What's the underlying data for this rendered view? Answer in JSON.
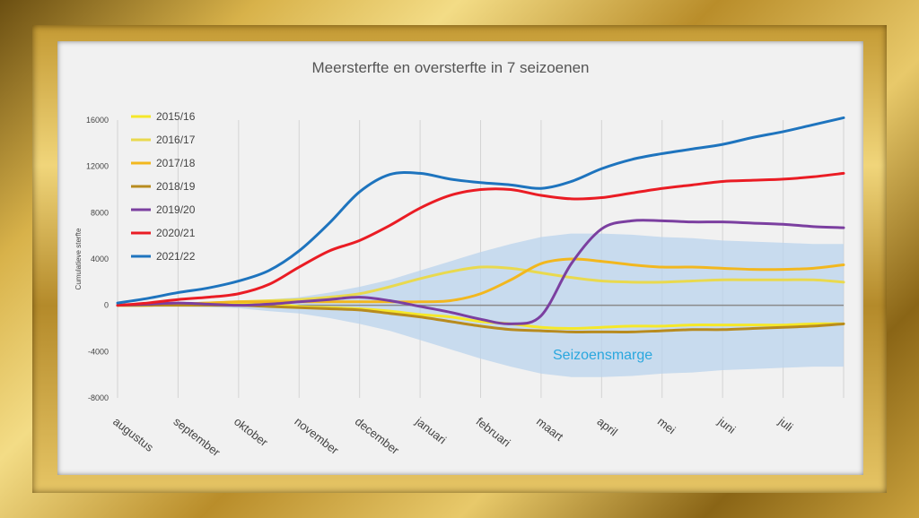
{
  "chart_data": {
    "type": "line",
    "title": "Meersterfte en oversterfte in 7 seizoenen",
    "xlabel": "",
    "ylabel": "Cumulatieve sterfte",
    "ylim": [
      -8000,
      16000
    ],
    "yticks": [
      16000,
      12000,
      8000,
      4000,
      0,
      -4000,
      -8000
    ],
    "categories": [
      "augustus",
      "september",
      "oktober",
      "november",
      "december",
      "januari",
      "februari",
      "maart",
      "april",
      "mei",
      "juni",
      "juli"
    ],
    "x": [
      0,
      0.5,
      1,
      1.5,
      2,
      2.5,
      3,
      3.5,
      4,
      4.5,
      5,
      5.5,
      6,
      6.5,
      7,
      7.5,
      8,
      8.5,
      9,
      9.5,
      10,
      10.5,
      11,
      11.5,
      12
    ],
    "legend_position": "top-left",
    "grid": "vertical",
    "annotation": "Seizoensmarge",
    "band": {
      "lower": [
        -100,
        -100,
        -100,
        -150,
        -250,
        -500,
        -700,
        -1100,
        -1600,
        -2200,
        -3000,
        -3800,
        -4600,
        -5300,
        -5900,
        -6200,
        -6200,
        -6100,
        -5900,
        -5800,
        -5600,
        -5500,
        -5400,
        -5300,
        -5300
      ],
      "upper": [
        100,
        100,
        100,
        150,
        250,
        500,
        700,
        1100,
        1600,
        2200,
        3000,
        3800,
        4600,
        5300,
        5900,
        6200,
        6200,
        6100,
        5900,
        5800,
        5600,
        5500,
        5400,
        5300,
        5300
      ],
      "color": "#b9d3ec"
    },
    "series": [
      {
        "name": "2015/16",
        "color": "#f5e829",
        "values": [
          0,
          0,
          100,
          150,
          150,
          150,
          -100,
          -200,
          -300,
          -500,
          -800,
          -1000,
          -1400,
          -1600,
          -1900,
          -2000,
          -1900,
          -1800,
          -1800,
          -1700,
          -1700,
          -1700,
          -1700,
          -1600,
          -1600
        ]
      },
      {
        "name": "2016/17",
        "color": "#e9d94e",
        "values": [
          0,
          50,
          100,
          200,
          300,
          400,
          500,
          700,
          1000,
          1600,
          2300,
          2900,
          3300,
          3200,
          2800,
          2400,
          2100,
          2000,
          2000,
          2100,
          2200,
          2200,
          2200,
          2200,
          2000
        ]
      },
      {
        "name": "2017/18",
        "color": "#f2b71e",
        "values": [
          0,
          0,
          100,
          200,
          300,
          300,
          300,
          300,
          300,
          300,
          300,
          400,
          1000,
          2200,
          3600,
          4000,
          3800,
          3500,
          3300,
          3300,
          3200,
          3100,
          3100,
          3200,
          3500
        ]
      },
      {
        "name": "2018/19",
        "color": "#b88b1e",
        "values": [
          0,
          0,
          0,
          0,
          0,
          -100,
          -200,
          -300,
          -400,
          -700,
          -1000,
          -1400,
          -1800,
          -2100,
          -2200,
          -2300,
          -2300,
          -2300,
          -2200,
          -2100,
          -2100,
          -2000,
          -1900,
          -1800,
          -1600
        ]
      },
      {
        "name": "2019/20",
        "color": "#7b3fa0",
        "values": [
          0,
          100,
          200,
          100,
          0,
          100,
          300,
          500,
          700,
          400,
          -100,
          -600,
          -1200,
          -1600,
          -900,
          3600,
          6600,
          7300,
          7300,
          7200,
          7200,
          7100,
          7000,
          6800,
          6700
        ]
      },
      {
        "name": "2020/21",
        "color": "#ea1c24",
        "values": [
          0,
          200,
          500,
          700,
          1000,
          1800,
          3300,
          4700,
          5600,
          6900,
          8400,
          9500,
          10000,
          10000,
          9500,
          9200,
          9300,
          9700,
          10100,
          10400,
          10700,
          10800,
          10900,
          11100,
          11400
        ]
      },
      {
        "name": "2021/22",
        "color": "#1e74be",
        "values": [
          200,
          600,
          1100,
          1500,
          2100,
          3000,
          4700,
          7100,
          9800,
          11300,
          11400,
          10900,
          10600,
          10400,
          10100,
          10700,
          11800,
          12600,
          13100,
          13500,
          13900,
          14500,
          15000,
          15600,
          16200
        ]
      }
    ]
  }
}
